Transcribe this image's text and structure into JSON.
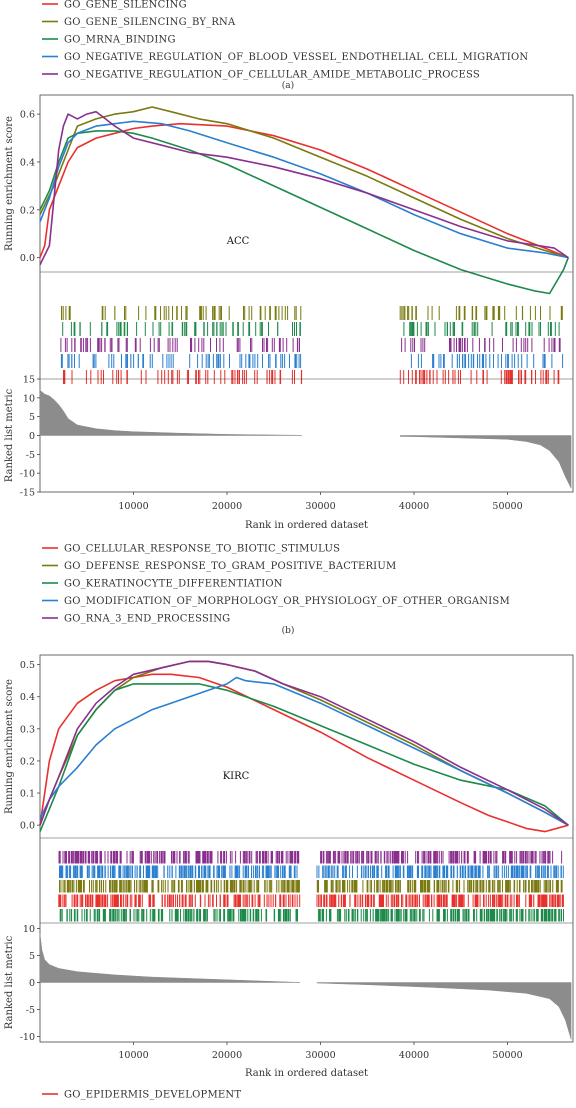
{
  "top_legend": [
    {
      "label": "GO_GENE_SILENCING",
      "color": "#e8312d"
    },
    {
      "label": "GO_GENE_SILENCING_BY_RNA",
      "color": "#7a7a10"
    },
    {
      "label": "GO_MRNA_BINDING",
      "color": "#1e8a4a"
    },
    {
      "label": "GO_NEGATIVE_REGULATION_OF_BLOOD_VESSEL_ENDOTHELIAL_CELL_MIGRATION",
      "color": "#2a7fd0"
    },
    {
      "label": "GO_NEGATIVE_REGULATION_OF_CELLULAR_AMIDE_METABOLIC_PROCESS",
      "color": "#8b2f8f"
    }
  ],
  "panel_tag_a": "(a)",
  "panel_tag_b": "(b)",
  "middle_legend": [
    {
      "label": "GO_CELLULAR_RESPONSE_TO_BIOTIC_STIMULUS",
      "color": "#e8312d"
    },
    {
      "label": "GO_DEFENSE_RESPONSE_TO_GRAM_POSITIVE_BACTERIUM",
      "color": "#7a7a10"
    },
    {
      "label": "GO_KERATINOCYTE_DIFFERENTIATION",
      "color": "#1e8a4a"
    },
    {
      "label": "GO_MODIFICATION_OF_MORPHOLOGY_OR_PHYSIOLOGY_OF_OTHER_ORGANISM",
      "color": "#2a7fd0"
    },
    {
      "label": "GO_RNA_3_END_PROCESSING",
      "color": "#8b2f8f"
    }
  ],
  "bottom_legend": [
    {
      "label": "GO_EPIDERMIS_DEVELOPMENT",
      "color": "#e8312d"
    }
  ],
  "chart_data": [
    {
      "type": "line",
      "annotation": "ACC",
      "ylabel": "Running enrichment score",
      "xlim": [
        0,
        57000
      ],
      "ylim": [
        -0.06,
        0.68
      ],
      "yticks": [
        0.0,
        0.2,
        0.4,
        0.6
      ],
      "ytick_labels": [
        "0.0",
        "0.2",
        "0.4",
        "0.6"
      ],
      "series": [
        {
          "name": "GO_GENE_SILENCING",
          "color": "#e8312d",
          "x": [
            0,
            500,
            1000,
            2000,
            3000,
            4000,
            6000,
            8000,
            10000,
            12000,
            15000,
            20000,
            25000,
            30000,
            35000,
            40000,
            45000,
            50000,
            54000,
            56500
          ],
          "y": [
            0.0,
            0.05,
            0.2,
            0.3,
            0.4,
            0.46,
            0.5,
            0.52,
            0.54,
            0.55,
            0.56,
            0.55,
            0.51,
            0.45,
            0.37,
            0.28,
            0.19,
            0.1,
            0.04,
            0.0
          ]
        },
        {
          "name": "GO_GENE_SILENCING_BY_RNA",
          "color": "#7a7a10",
          "x": [
            0,
            500,
            1500,
            3000,
            4000,
            6000,
            8000,
            10000,
            12000,
            14000,
            17000,
            20000,
            25000,
            30000,
            35000,
            40000,
            45000,
            50000,
            54000,
            56500
          ],
          "y": [
            0.18,
            0.22,
            0.3,
            0.45,
            0.55,
            0.58,
            0.6,
            0.61,
            0.63,
            0.61,
            0.58,
            0.56,
            0.5,
            0.42,
            0.34,
            0.25,
            0.16,
            0.08,
            0.03,
            0.0
          ]
        },
        {
          "name": "GO_MRNA_BINDING",
          "color": "#1e8a4a",
          "x": [
            0,
            1000,
            2000,
            3000,
            4000,
            6000,
            8000,
            10000,
            12000,
            16000,
            20000,
            25000,
            30000,
            35000,
            40000,
            45000,
            50000,
            53000,
            54500,
            56000,
            56500
          ],
          "y": [
            0.2,
            0.28,
            0.4,
            0.5,
            0.52,
            0.53,
            0.53,
            0.52,
            0.5,
            0.45,
            0.39,
            0.3,
            0.21,
            0.12,
            0.03,
            -0.05,
            -0.11,
            -0.14,
            -0.15,
            -0.05,
            0.0
          ]
        },
        {
          "name": "GO_NEGATIVE_REGULATION_OF_BLOOD_VESSEL_ENDOTHELIAL_CELL_MIGRATION",
          "color": "#2a7fd0",
          "x": [
            0,
            1000,
            2000,
            3000,
            4000,
            6000,
            8000,
            10000,
            13000,
            16000,
            20000,
            25000,
            30000,
            35000,
            40000,
            45000,
            50000,
            54000,
            56500
          ],
          "y": [
            0.15,
            0.25,
            0.38,
            0.48,
            0.52,
            0.55,
            0.56,
            0.57,
            0.56,
            0.53,
            0.48,
            0.42,
            0.35,
            0.27,
            0.18,
            0.1,
            0.04,
            0.02,
            0.0
          ]
        },
        {
          "name": "GO_NEGATIVE_REGULATION_OF_CELLULAR_AMIDE_METABOLIC_PROCESS",
          "color": "#8b2f8f",
          "x": [
            0,
            1000,
            2000,
            2500,
            3000,
            4000,
            5000,
            6000,
            7000,
            8000,
            10000,
            13000,
            16000,
            20000,
            25000,
            30000,
            35000,
            40000,
            45000,
            50000,
            55000,
            56500
          ],
          "y": [
            -0.03,
            0.05,
            0.45,
            0.55,
            0.6,
            0.58,
            0.6,
            0.61,
            0.58,
            0.55,
            0.5,
            0.47,
            0.44,
            0.42,
            0.38,
            0.33,
            0.27,
            0.2,
            0.13,
            0.07,
            0.04,
            0.0
          ]
        }
      ]
    },
    {
      "type": "area",
      "ylabel": "Ranked list metric",
      "xlabel": "Rank in ordered dataset",
      "xlim": [
        0,
        57000
      ],
      "ylim": [
        -15,
        15
      ],
      "xticks": [
        10000,
        20000,
        30000,
        40000,
        50000
      ],
      "xtick_labels": [
        "10000",
        "20000",
        "30000",
        "40000",
        "50000"
      ],
      "yticks": [
        -15,
        -10,
        -5,
        0,
        5,
        10,
        15
      ],
      "ytick_labels": [
        "-15",
        "-10",
        "-5",
        "0",
        "5",
        "10",
        "15"
      ],
      "x": [
        0,
        500,
        1000,
        1500,
        2000,
        2500,
        3000,
        4000,
        6000,
        8000,
        10000,
        15000,
        20000,
        30000,
        40000,
        50000,
        52000,
        53500,
        54500,
        55500,
        56200,
        56800
      ],
      "y": [
        12,
        11,
        10.5,
        9.5,
        8.2,
        6.5,
        4.5,
        2.8,
        1.8,
        1.3,
        1.0,
        0.6,
        0.3,
        0.0,
        -0.3,
        -1.0,
        -1.6,
        -2.5,
        -4.0,
        -7.0,
        -11.0,
        -14.0
      ],
      "gaps": [
        [
          28000,
          38500
        ]
      ]
    },
    {
      "type": "line",
      "annotation": "KIRC",
      "ylabel": "Running enrichment score",
      "xlim": [
        0,
        57000
      ],
      "ylim": [
        -0.04,
        0.53
      ],
      "yticks": [
        0.0,
        0.1,
        0.2,
        0.3,
        0.4,
        0.5
      ],
      "ytick_labels": [
        "0.0",
        "0.1",
        "0.2",
        "0.3",
        "0.4",
        "0.5"
      ],
      "series": [
        {
          "name": "GO_CELLULAR_RESPONSE_TO_BIOTIC_STIMULUS",
          "color": "#e8312d",
          "x": [
            0,
            1000,
            2000,
            4000,
            6000,
            8000,
            10000,
            12000,
            14000,
            17000,
            20000,
            25000,
            30000,
            35000,
            40000,
            45000,
            48000,
            50000,
            52000,
            54000,
            56500
          ],
          "y": [
            0.0,
            0.2,
            0.3,
            0.38,
            0.42,
            0.45,
            0.46,
            0.47,
            0.47,
            0.46,
            0.43,
            0.36,
            0.29,
            0.21,
            0.14,
            0.07,
            0.03,
            0.01,
            -0.01,
            -0.02,
            0.0
          ]
        },
        {
          "name": "GO_DEFENSE_RESPONSE_TO_GRAM_POSITIVE_BACTERIUM",
          "color": "#7a7a10",
          "x": [
            0,
            1000,
            2000,
            4000,
            6000,
            8000,
            10000,
            13000,
            16000,
            18000,
            20000,
            23000,
            26000,
            30000,
            35000,
            40000,
            45000,
            50000,
            54000,
            56500
          ],
          "y": [
            0.0,
            0.08,
            0.15,
            0.28,
            0.36,
            0.42,
            0.46,
            0.49,
            0.51,
            0.51,
            0.5,
            0.48,
            0.44,
            0.39,
            0.32,
            0.25,
            0.17,
            0.1,
            0.04,
            0.0
          ]
        },
        {
          "name": "GO_KERATINOCYTE_DIFFERENTIATION",
          "color": "#1e8a4a",
          "x": [
            0,
            1000,
            2000,
            3000,
            4000,
            6000,
            8000,
            10000,
            12000,
            14000,
            17000,
            20000,
            25000,
            30000,
            35000,
            40000,
            45000,
            50000,
            54000,
            56500
          ],
          "y": [
            -0.02,
            0.05,
            0.12,
            0.2,
            0.28,
            0.36,
            0.42,
            0.44,
            0.44,
            0.44,
            0.44,
            0.42,
            0.37,
            0.31,
            0.25,
            0.19,
            0.14,
            0.11,
            0.06,
            0.0
          ]
        },
        {
          "name": "GO_MODIFICATION_OF_MORPHOLOGY_OR_PHYSIOLOGY_OF_OTHER_ORGANISM",
          "color": "#2a7fd0",
          "x": [
            0,
            1000,
            2000,
            4000,
            6000,
            8000,
            10000,
            12000,
            14000,
            16000,
            18000,
            20000,
            21000,
            22000,
            25000,
            30000,
            35000,
            40000,
            45000,
            50000,
            54000,
            56500
          ],
          "y": [
            0.02,
            0.08,
            0.12,
            0.18,
            0.25,
            0.3,
            0.33,
            0.36,
            0.38,
            0.4,
            0.42,
            0.44,
            0.46,
            0.45,
            0.44,
            0.38,
            0.31,
            0.24,
            0.17,
            0.1,
            0.04,
            0.0
          ]
        },
        {
          "name": "GO_RNA_3_END_PROCESSING",
          "color": "#8b2f8f",
          "x": [
            0,
            1000,
            2000,
            4000,
            6000,
            8000,
            10000,
            13000,
            16000,
            18000,
            20000,
            23000,
            26000,
            30000,
            35000,
            40000,
            45000,
            50000,
            54000,
            56500
          ],
          "y": [
            0.0,
            0.08,
            0.15,
            0.3,
            0.38,
            0.43,
            0.47,
            0.49,
            0.51,
            0.51,
            0.5,
            0.48,
            0.44,
            0.4,
            0.33,
            0.26,
            0.18,
            0.11,
            0.05,
            0.0
          ]
        }
      ]
    },
    {
      "type": "area",
      "ylabel": "Ranked list metric",
      "xlabel": "Rank in ordered dataset",
      "xlim": [
        0,
        57000
      ],
      "ylim": [
        -11,
        11
      ],
      "xticks": [
        10000,
        20000,
        30000,
        40000,
        50000
      ],
      "xtick_labels": [
        "10000",
        "20000",
        "30000",
        "40000",
        "50000"
      ],
      "yticks": [
        -10,
        -5,
        0,
        5,
        10
      ],
      "ytick_labels": [
        "-10",
        "-5",
        "0",
        "5",
        "10"
      ],
      "x": [
        0,
        200,
        500,
        1000,
        2000,
        4000,
        8000,
        12000,
        20000,
        28000,
        35000,
        42000,
        48000,
        52000,
        54500,
        55500,
        56200,
        56800
      ],
      "y": [
        9,
        6,
        4.2,
        3.3,
        2.6,
        2.0,
        1.4,
        1.0,
        0.5,
        0.0,
        -0.4,
        -0.9,
        -1.4,
        -2.0,
        -3.0,
        -4.5,
        -7.0,
        -10.5
      ],
      "gaps": [
        [
          27800,
          29600
        ]
      ]
    }
  ]
}
